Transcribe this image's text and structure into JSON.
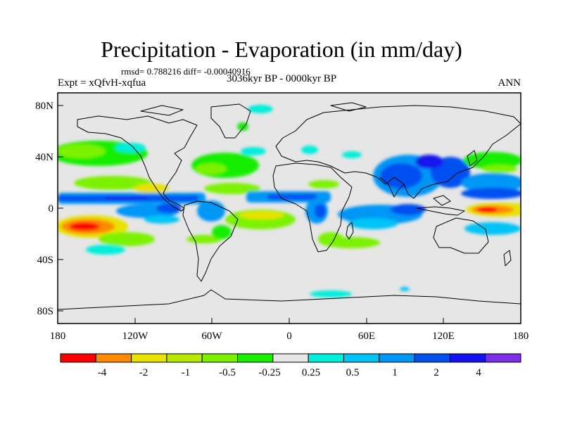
{
  "title": "Precipitation - Evaporation (in mm/day)",
  "stats": "rmsd= 0.788216 diff= -0.00040916",
  "expt": "Expt = xQfvH-xqfua",
  "period": "3036kyr BP - 0000kyr BP",
  "season": "ANN",
  "map": {
    "lon_labels": [
      "180",
      "120W",
      "60W",
      "0",
      "60E",
      "120E",
      "180"
    ],
    "lat_labels": [
      "80N",
      "40N",
      "0",
      "40S",
      "80S"
    ],
    "background_color": "#e6e6e6",
    "coast_color": "#000000"
  },
  "colorbar": {
    "colors": [
      "#ff0000",
      "#ff8a00",
      "#e8e200",
      "#b8ea00",
      "#7cf200",
      "#18ee00",
      "#e6e6e6",
      "#00eedc",
      "#00c4f6",
      "#0096f6",
      "#0050f0",
      "#1412ee",
      "#7a2ee6"
    ],
    "labels": [
      "-4",
      "-2",
      "-1",
      "-0.5",
      "-0.25",
      "0.25",
      "0.5",
      "1",
      "2",
      "4"
    ]
  }
}
